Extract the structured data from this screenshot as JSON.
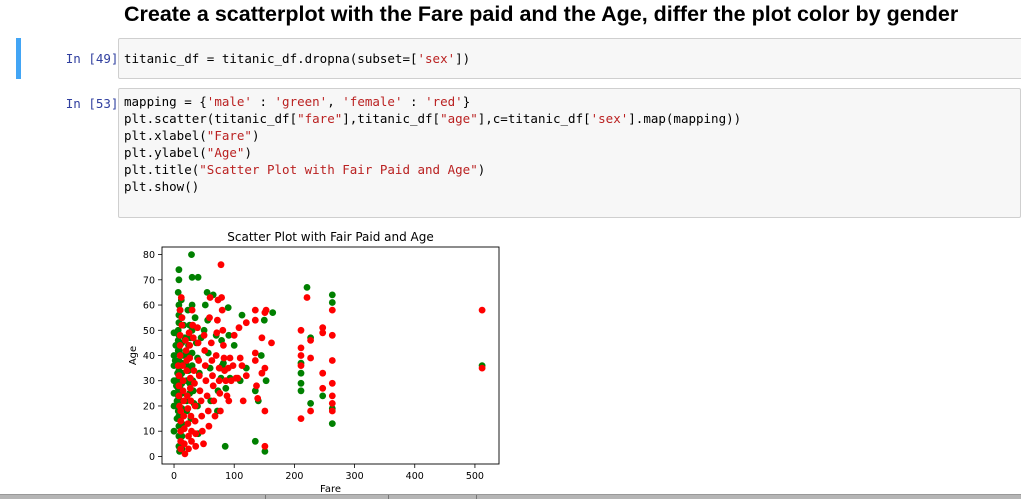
{
  "markdown": {
    "heading": "Create a scatterplot with the Fare paid and the Age, differ the plot color by gender"
  },
  "cells": [
    {
      "prompt": "In [49]:",
      "lines": [
        [
          {
            "t": "titanic_df = titanic_df.dropna(subset=[",
            "c": ""
          },
          {
            "t": "'sex'",
            "c": "s"
          },
          {
            "t": "])",
            "c": ""
          }
        ]
      ]
    },
    {
      "prompt": "In [53]:",
      "lines": [
        [
          {
            "t": "mapping = {",
            "c": ""
          },
          {
            "t": "'male'",
            "c": "s"
          },
          {
            "t": " : ",
            "c": ""
          },
          {
            "t": "'green'",
            "c": "s"
          },
          {
            "t": ", ",
            "c": ""
          },
          {
            "t": "'female'",
            "c": "s"
          },
          {
            "t": " : ",
            "c": ""
          },
          {
            "t": "'red'",
            "c": "s"
          },
          {
            "t": "}",
            "c": ""
          }
        ],
        [
          {
            "t": "plt.scatter(titanic_df[",
            "c": ""
          },
          {
            "t": "\"fare\"",
            "c": "s"
          },
          {
            "t": "],titanic_df[",
            "c": ""
          },
          {
            "t": "\"age\"",
            "c": "s"
          },
          {
            "t": "],c=titanic_df[",
            "c": ""
          },
          {
            "t": "'sex'",
            "c": "s"
          },
          {
            "t": "].map(mapping))",
            "c": ""
          }
        ],
        [
          {
            "t": "plt.xlabel(",
            "c": ""
          },
          {
            "t": "\"Fare\"",
            "c": "s"
          },
          {
            "t": ")",
            "c": ""
          }
        ],
        [
          {
            "t": "plt.ylabel(",
            "c": ""
          },
          {
            "t": "\"Age\"",
            "c": "s"
          },
          {
            "t": ")",
            "c": ""
          }
        ],
        [
          {
            "t": "plt.title(",
            "c": ""
          },
          {
            "t": "\"Scatter Plot with Fair Paid and Age\"",
            "c": "s"
          },
          {
            "t": ")",
            "c": ""
          }
        ],
        [
          {
            "t": "plt.show()",
            "c": ""
          }
        ]
      ]
    }
  ],
  "chart_data": {
    "type": "scatter",
    "title": "Scatter Plot with Fair Paid and Age",
    "xlabel": "Fare",
    "ylabel": "Age",
    "xlim": [
      -20,
      540
    ],
    "ylim": [
      -3,
      83
    ],
    "xticks": [
      0,
      100,
      200,
      300,
      400,
      500
    ],
    "yticks": [
      0,
      10,
      20,
      30,
      40,
      50,
      60,
      70,
      80
    ],
    "grid": false,
    "colors": {
      "male": "#008000",
      "female": "#ff0000"
    },
    "series": [
      {
        "color": "green",
        "points": [
          [
            0,
            49
          ],
          [
            0,
            36
          ],
          [
            0,
            40
          ],
          [
            0,
            25
          ],
          [
            0,
            20
          ],
          [
            0,
            30
          ],
          [
            0,
            10
          ],
          [
            2,
            38
          ],
          [
            3,
            44
          ],
          [
            4,
            28
          ],
          [
            5,
            22
          ],
          [
            5,
            15
          ],
          [
            6,
            33
          ],
          [
            7,
            50
          ],
          [
            7,
            46
          ],
          [
            7,
            42
          ],
          [
            7,
            36
          ],
          [
            7,
            30
          ],
          [
            7,
            27
          ],
          [
            7,
            24
          ],
          [
            7,
            21
          ],
          [
            7,
            18
          ],
          [
            7,
            65
          ],
          [
            8,
            74
          ],
          [
            8,
            70
          ],
          [
            8,
            60
          ],
          [
            8,
            56
          ],
          [
            8,
            53
          ],
          [
            8,
            48
          ],
          [
            8,
            45
          ],
          [
            8,
            41
          ],
          [
            8,
            38
          ],
          [
            8,
            34
          ],
          [
            8,
            31
          ],
          [
            8,
            26
          ],
          [
            8,
            23
          ],
          [
            8,
            19
          ],
          [
            8,
            16
          ],
          [
            8,
            12
          ],
          [
            8,
            8
          ],
          [
            8,
            4
          ],
          [
            9,
            2
          ],
          [
            9,
            42
          ],
          [
            10,
            32
          ],
          [
            10,
            28
          ],
          [
            10,
            58
          ],
          [
            12,
            62
          ],
          [
            13,
            55
          ],
          [
            13,
            45
          ],
          [
            13,
            37
          ],
          [
            13,
            33
          ],
          [
            13,
            29
          ],
          [
            13,
            25
          ],
          [
            13,
            19
          ],
          [
            13,
            13
          ],
          [
            13,
            8
          ],
          [
            13,
            3
          ],
          [
            15,
            40
          ],
          [
            16,
            52
          ],
          [
            18,
            47
          ],
          [
            19,
            40
          ],
          [
            21,
            36
          ],
          [
            21,
            30
          ],
          [
            21,
            22
          ],
          [
            21,
            18
          ],
          [
            23,
            58
          ],
          [
            24,
            44
          ],
          [
            24,
            34
          ],
          [
            26,
            29
          ],
          [
            26,
            25
          ],
          [
            26,
            40
          ],
          [
            26,
            52
          ],
          [
            27,
            47
          ],
          [
            28,
            15
          ],
          [
            29,
            80
          ],
          [
            30,
            71
          ],
          [
            30,
            60
          ],
          [
            30,
            50
          ],
          [
            30,
            41
          ],
          [
            30,
            36
          ],
          [
            31,
            30
          ],
          [
            32,
            26
          ],
          [
            33,
            21
          ],
          [
            35,
            55
          ],
          [
            37,
            45
          ],
          [
            39,
            39
          ],
          [
            39,
            20
          ],
          [
            40,
            71
          ],
          [
            40,
            9
          ],
          [
            42,
            33
          ],
          [
            45,
            47
          ],
          [
            50,
            50
          ],
          [
            52,
            60
          ],
          [
            55,
            65
          ],
          [
            56,
            54
          ],
          [
            57,
            41
          ],
          [
            60,
            35
          ],
          [
            61,
            22
          ],
          [
            65,
            64
          ],
          [
            70,
            48
          ],
          [
            72,
            18
          ],
          [
            73,
            26
          ],
          [
            76,
            35
          ],
          [
            78,
            31
          ],
          [
            79,
            46
          ],
          [
            80,
            36
          ],
          [
            82,
            37
          ],
          [
            85,
            4
          ],
          [
            86,
            27
          ],
          [
            90,
            59
          ],
          [
            91,
            48
          ],
          [
            93,
            31
          ],
          [
            100,
            44
          ],
          [
            110,
            30
          ],
          [
            113,
            56
          ],
          [
            120,
            35
          ],
          [
            135,
            6
          ],
          [
            135,
            26
          ],
          [
            140,
            22
          ],
          [
            145,
            40
          ],
          [
            150,
            54
          ],
          [
            151,
            2
          ],
          [
            153,
            30
          ],
          [
            164,
            57
          ],
          [
            211,
            37
          ],
          [
            211,
            33
          ],
          [
            211,
            29
          ],
          [
            211,
            26
          ],
          [
            221,
            67
          ],
          [
            227,
            47
          ],
          [
            227,
            21
          ],
          [
            247,
            24
          ],
          [
            263,
            64
          ],
          [
            263,
            61
          ],
          [
            263,
            19
          ],
          [
            263,
            13
          ],
          [
            512,
            36
          ]
        ]
      },
      {
        "color": "red",
        "points": [
          [
            7,
            36
          ],
          [
            8,
            32
          ],
          [
            8,
            28
          ],
          [
            8,
            24
          ],
          [
            9,
            20
          ],
          [
            10,
            58
          ],
          [
            10,
            48
          ],
          [
            10,
            44
          ],
          [
            10,
            40
          ],
          [
            11,
            18
          ],
          [
            11,
            14
          ],
          [
            11,
            10
          ],
          [
            11,
            6
          ],
          [
            11,
            3
          ],
          [
            12,
            63
          ],
          [
            13,
            55
          ],
          [
            13,
            52
          ],
          [
            14,
            36
          ],
          [
            15,
            30
          ],
          [
            15,
            26
          ],
          [
            16,
            22
          ],
          [
            16,
            16
          ],
          [
            17,
            11
          ],
          [
            17,
            5
          ],
          [
            18,
            1
          ],
          [
            19,
            46
          ],
          [
            20,
            42
          ],
          [
            21,
            38
          ],
          [
            21,
            34
          ],
          [
            22,
            24
          ],
          [
            23,
            19
          ],
          [
            23,
            13
          ],
          [
            24,
            8
          ],
          [
            24,
            3
          ],
          [
            25,
            49
          ],
          [
            26,
            44
          ],
          [
            26,
            39
          ],
          [
            27,
            31
          ],
          [
            27,
            27
          ],
          [
            28,
            22
          ],
          [
            28,
            16
          ],
          [
            29,
            10
          ],
          [
            29,
            6
          ],
          [
            30,
            58
          ],
          [
            31,
            52
          ],
          [
            32,
            47
          ],
          [
            33,
            34
          ],
          [
            34,
            29
          ],
          [
            35,
            20
          ],
          [
            35,
            14
          ],
          [
            36,
            9
          ],
          [
            36,
            4
          ],
          [
            39,
            51
          ],
          [
            40,
            45
          ],
          [
            41,
            38
          ],
          [
            42,
            32
          ],
          [
            43,
            26
          ],
          [
            45,
            22
          ],
          [
            46,
            16
          ],
          [
            47,
            10
          ],
          [
            49,
            5
          ],
          [
            50,
            48
          ],
          [
            51,
            42
          ],
          [
            52,
            36
          ],
          [
            53,
            30
          ],
          [
            55,
            24
          ],
          [
            57,
            18
          ],
          [
            58,
            12
          ],
          [
            59,
            55
          ],
          [
            60,
            63
          ],
          [
            62,
            45
          ],
          [
            63,
            38
          ],
          [
            64,
            32
          ],
          [
            65,
            28
          ],
          [
            66,
            22
          ],
          [
            68,
            16
          ],
          [
            70,
            40
          ],
          [
            71,
            49
          ],
          [
            72,
            54
          ],
          [
            73,
            62
          ],
          [
            75,
            35
          ],
          [
            75,
            30
          ],
          [
            76,
            25
          ],
          [
            77,
            18
          ],
          [
            78,
            76
          ],
          [
            79,
            63
          ],
          [
            80,
            58
          ],
          [
            81,
            50
          ],
          [
            82,
            44
          ],
          [
            83,
            39
          ],
          [
            84,
            34
          ],
          [
            86,
            30
          ],
          [
            88,
            24
          ],
          [
            90,
            35
          ],
          [
            91,
            22
          ],
          [
            93,
            39
          ],
          [
            95,
            30
          ],
          [
            98,
            36
          ],
          [
            100,
            48
          ],
          [
            103,
            31
          ],
          [
            106,
            31
          ],
          [
            108,
            51
          ],
          [
            110,
            39
          ],
          [
            113,
            36
          ],
          [
            115,
            22
          ],
          [
            120,
            53
          ],
          [
            120,
            32
          ],
          [
            135,
            58
          ],
          [
            135,
            54
          ],
          [
            135,
            41
          ],
          [
            135,
            38
          ],
          [
            137,
            28
          ],
          [
            139,
            23
          ],
          [
            146,
            47
          ],
          [
            146,
            33
          ],
          [
            151,
            57
          ],
          [
            151,
            35
          ],
          [
            151,
            18
          ],
          [
            151,
            4
          ],
          [
            153,
            58
          ],
          [
            162,
            45
          ],
          [
            211,
            50
          ],
          [
            211,
            43
          ],
          [
            211,
            40
          ],
          [
            211,
            36
          ],
          [
            211,
            15
          ],
          [
            221,
            63
          ],
          [
            227,
            46
          ],
          [
            227,
            39
          ],
          [
            227,
            18
          ],
          [
            247,
            51
          ],
          [
            247,
            49
          ],
          [
            247,
            33
          ],
          [
            247,
            27
          ],
          [
            263,
            58
          ],
          [
            263,
            48
          ],
          [
            263,
            38
          ],
          [
            263,
            29
          ],
          [
            263,
            24
          ],
          [
            263,
            21
          ],
          [
            263,
            18
          ],
          [
            512,
            58
          ],
          [
            512,
            35
          ]
        ]
      }
    ]
  }
}
